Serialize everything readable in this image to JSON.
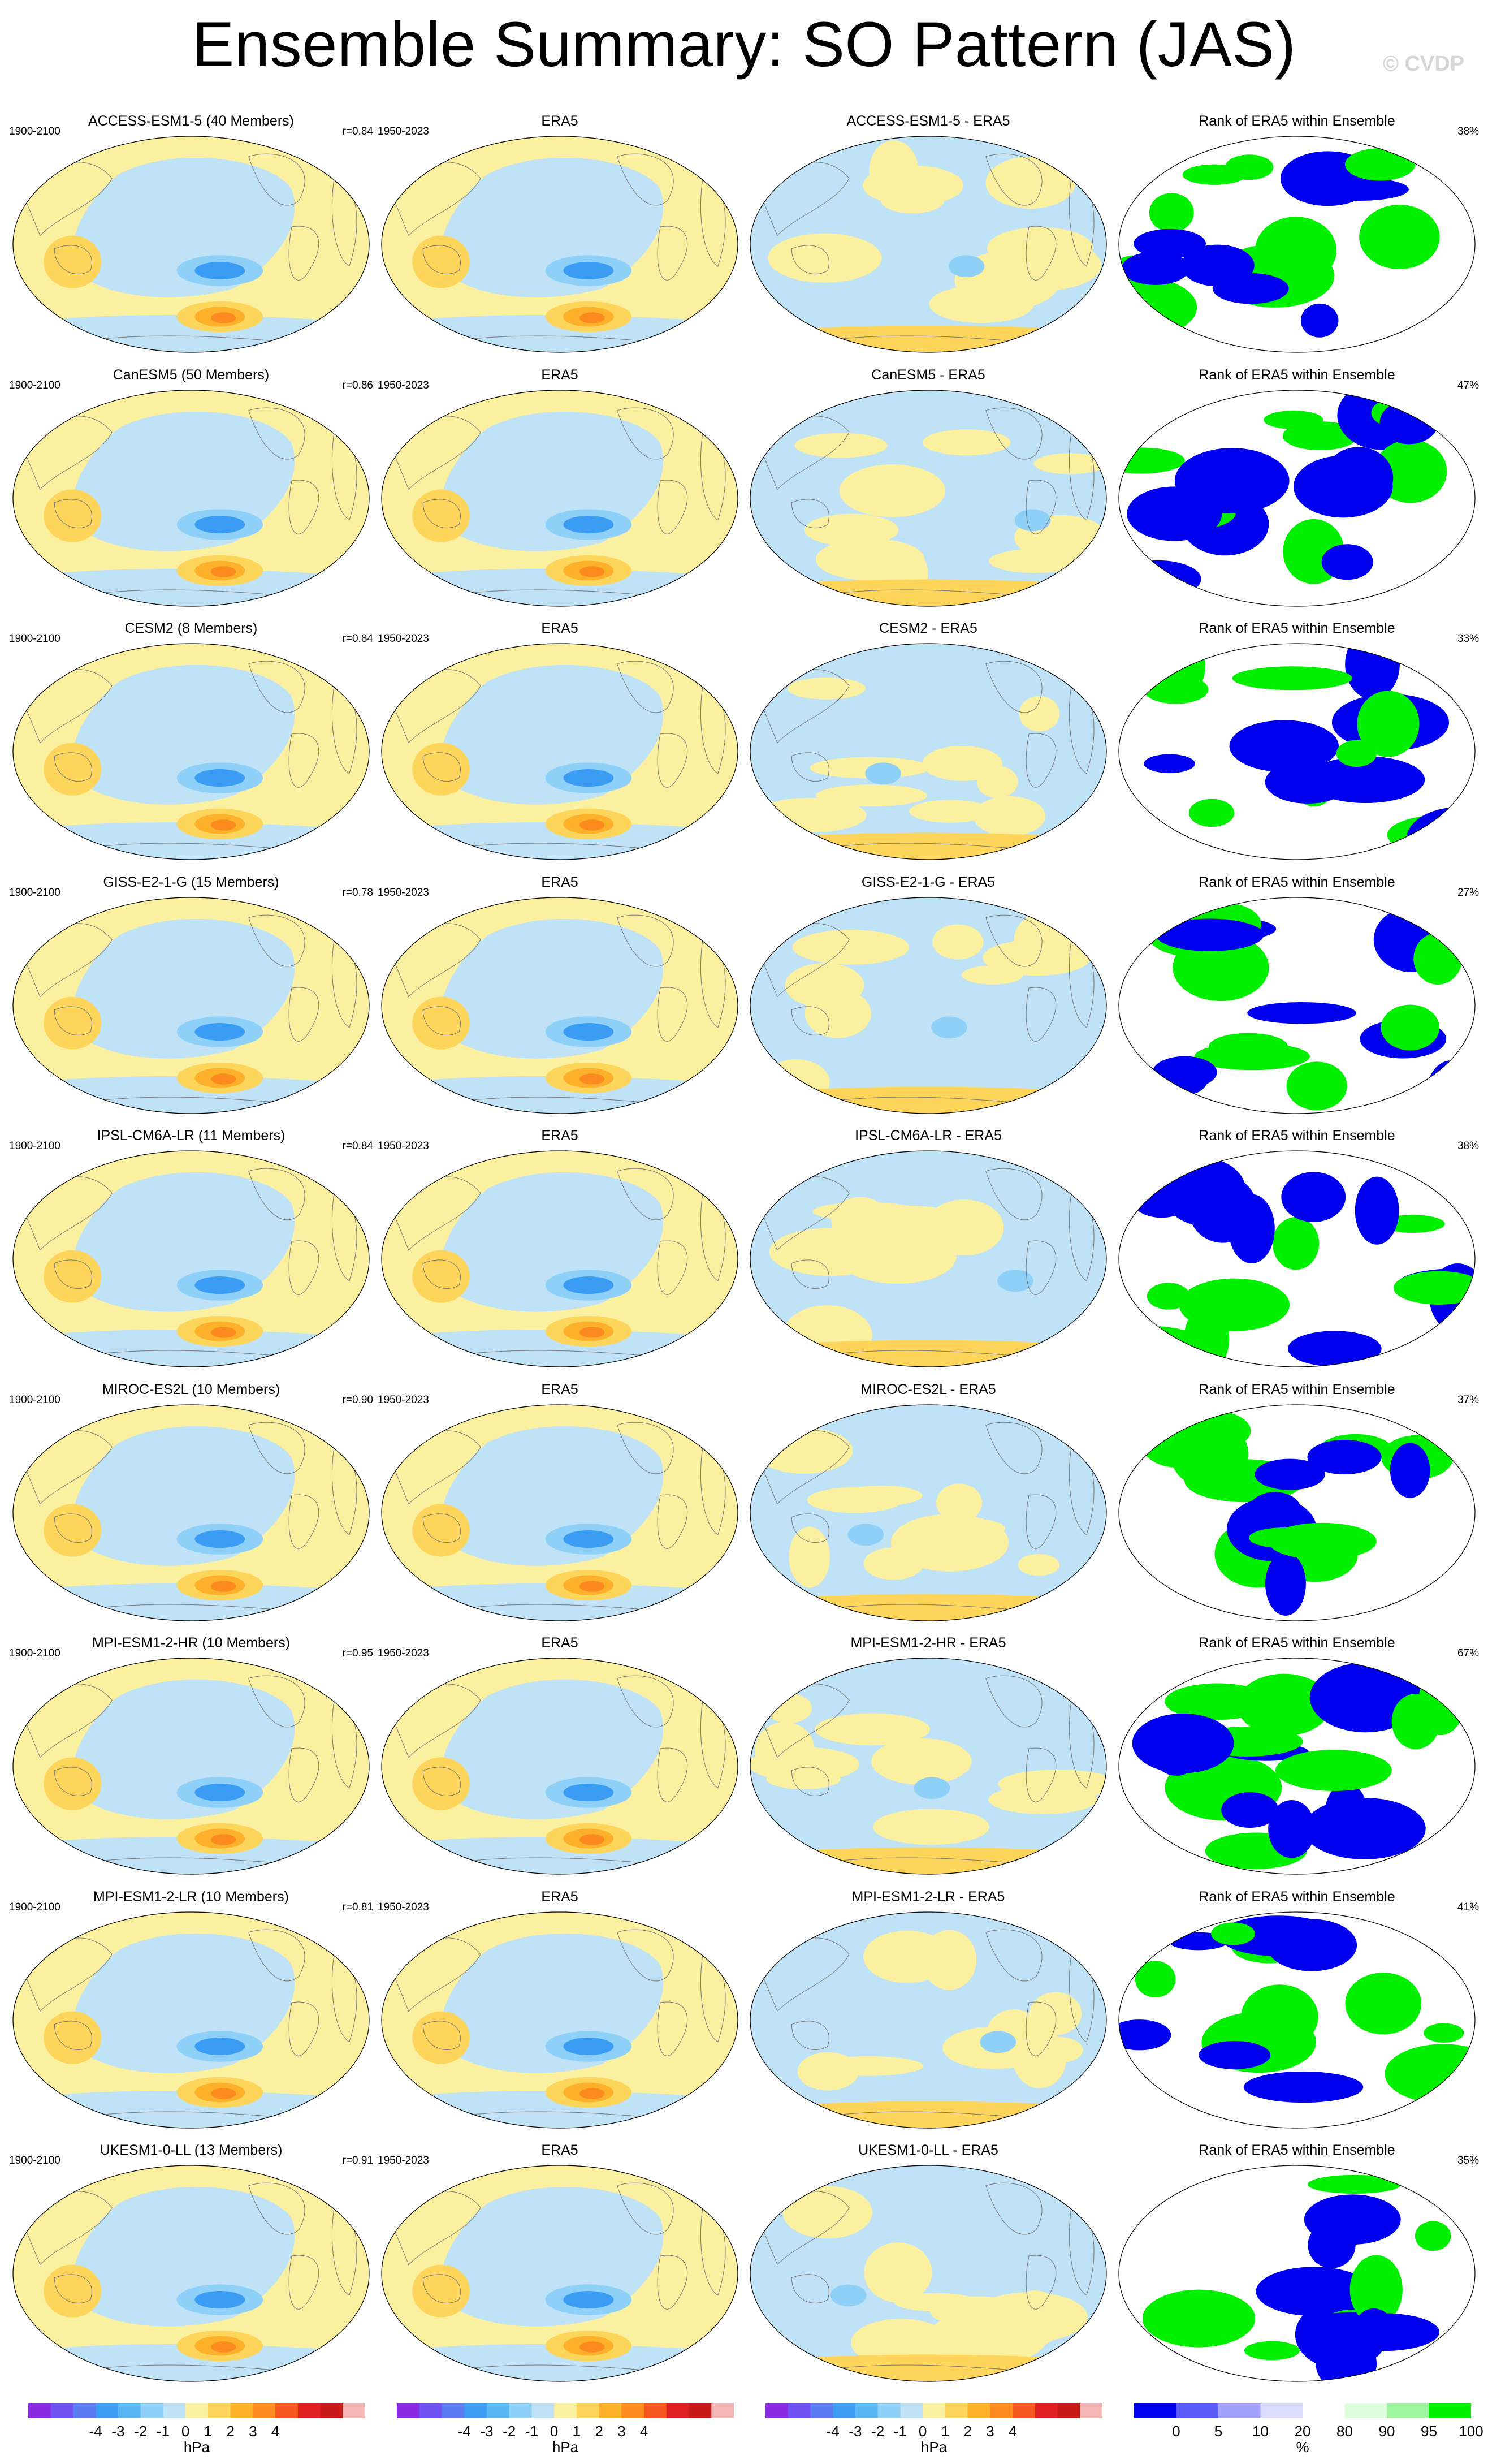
{
  "title": "Ensemble Summary: SO Pattern (JAS)",
  "watermark": "© CVDP",
  "colors": {
    "background": "#ffffff",
    "pos_fill": "#fbf0a0",
    "neg_fill": "#bfe2f6",
    "ocean_lines": "#777777",
    "rank_low": "#0000f0",
    "rank_mid": "#ffffff",
    "rank_high": "#00f000"
  },
  "colorbars": [
    {
      "type": "diverging",
      "ticks": [
        "-4",
        "-3",
        "-2",
        "-1",
        "0",
        "1",
        "2",
        "3",
        "4"
      ],
      "unit": "hPa",
      "colors": [
        "#8a2be2",
        "#6f52f0",
        "#5a7bf2",
        "#3b9cf4",
        "#58b8f6",
        "#8fd0f8",
        "#bfe2f6",
        "#fbf0a0",
        "#fcd55a",
        "#fdb02a",
        "#fc8a1f",
        "#f4581c",
        "#e02020",
        "#c91a1a",
        "#f5b6b6"
      ]
    },
    {
      "type": "diverging",
      "ticks": [
        "-4",
        "-3",
        "-2",
        "-1",
        "0",
        "1",
        "2",
        "3",
        "4"
      ],
      "unit": "hPa",
      "colors": [
        "#8a2be2",
        "#6f52f0",
        "#5a7bf2",
        "#3b9cf4",
        "#58b8f6",
        "#8fd0f8",
        "#bfe2f6",
        "#fbf0a0",
        "#fcd55a",
        "#fdb02a",
        "#fc8a1f",
        "#f4581c",
        "#e02020",
        "#c91a1a",
        "#f5b6b6"
      ]
    },
    {
      "type": "diverging",
      "ticks": [
        "-4",
        "-3",
        "-2",
        "-1",
        "0",
        "1",
        "2",
        "3",
        "4"
      ],
      "unit": "hPa",
      "colors": [
        "#8a2be2",
        "#6f52f0",
        "#5a7bf2",
        "#3b9cf4",
        "#58b8f6",
        "#8fd0f8",
        "#bfe2f6",
        "#fbf0a0",
        "#fcd55a",
        "#fdb02a",
        "#fc8a1f",
        "#f4581c",
        "#e02020",
        "#c91a1a",
        "#f5b6b6"
      ]
    },
    {
      "type": "rank",
      "ticks": [
        "0",
        "5",
        "10",
        "20",
        "80",
        "90",
        "95",
        "100"
      ],
      "unit": "%",
      "colors": [
        "#0000f0",
        "#5a5af6",
        "#a0a0fa",
        "#dcdcfe",
        "#ffffff",
        "#dcfcdc",
        "#a0f8a0",
        "#00f000"
      ]
    }
  ],
  "chart_data": [
    {
      "type": "heatmap",
      "row": 0,
      "col": 0,
      "title": "ACCESS-ESM1-5 (40 Members)",
      "left_label": "1900-2100",
      "right_label": "r=0.84"
    },
    {
      "type": "heatmap",
      "row": 0,
      "col": 1,
      "title": "ERA5",
      "left_label": "1950-2023",
      "right_label": ""
    },
    {
      "type": "heatmap",
      "row": 0,
      "col": 2,
      "title": "ACCESS-ESM1-5 - ERA5",
      "left_label": "",
      "right_label": ""
    },
    {
      "type": "heatmap",
      "row": 0,
      "col": 3,
      "title": "Rank of ERA5 within Ensemble",
      "left_label": "",
      "right_label": "38%"
    },
    {
      "type": "heatmap",
      "row": 1,
      "col": 0,
      "title": "CanESM5 (50 Members)",
      "left_label": "1900-2100",
      "right_label": "r=0.86"
    },
    {
      "type": "heatmap",
      "row": 1,
      "col": 1,
      "title": "ERA5",
      "left_label": "1950-2023",
      "right_label": ""
    },
    {
      "type": "heatmap",
      "row": 1,
      "col": 2,
      "title": "CanESM5 - ERA5",
      "left_label": "",
      "right_label": ""
    },
    {
      "type": "heatmap",
      "row": 1,
      "col": 3,
      "title": "Rank of ERA5 within Ensemble",
      "left_label": "",
      "right_label": "47%"
    },
    {
      "type": "heatmap",
      "row": 2,
      "col": 0,
      "title": "CESM2 (8 Members)",
      "left_label": "1900-2100",
      "right_label": "r=0.84"
    },
    {
      "type": "heatmap",
      "row": 2,
      "col": 1,
      "title": "ERA5",
      "left_label": "1950-2023",
      "right_label": ""
    },
    {
      "type": "heatmap",
      "row": 2,
      "col": 2,
      "title": "CESM2 - ERA5",
      "left_label": "",
      "right_label": ""
    },
    {
      "type": "heatmap",
      "row": 2,
      "col": 3,
      "title": "Rank of ERA5 within Ensemble",
      "left_label": "",
      "right_label": "33%"
    },
    {
      "type": "heatmap",
      "row": 3,
      "col": 0,
      "title": "GISS-E2-1-G (15 Members)",
      "left_label": "1900-2100",
      "right_label": "r=0.78"
    },
    {
      "type": "heatmap",
      "row": 3,
      "col": 1,
      "title": "ERA5",
      "left_label": "1950-2023",
      "right_label": ""
    },
    {
      "type": "heatmap",
      "row": 3,
      "col": 2,
      "title": "GISS-E2-1-G - ERA5",
      "left_label": "",
      "right_label": ""
    },
    {
      "type": "heatmap",
      "row": 3,
      "col": 3,
      "title": "Rank of ERA5 within Ensemble",
      "left_label": "",
      "right_label": "27%"
    },
    {
      "type": "heatmap",
      "row": 4,
      "col": 0,
      "title": "IPSL-CM6A-LR (11 Members)",
      "left_label": "1900-2100",
      "right_label": "r=0.84"
    },
    {
      "type": "heatmap",
      "row": 4,
      "col": 1,
      "title": "ERA5",
      "left_label": "1950-2023",
      "right_label": ""
    },
    {
      "type": "heatmap",
      "row": 4,
      "col": 2,
      "title": "IPSL-CM6A-LR - ERA5",
      "left_label": "",
      "right_label": ""
    },
    {
      "type": "heatmap",
      "row": 4,
      "col": 3,
      "title": "Rank of ERA5 within Ensemble",
      "left_label": "",
      "right_label": "38%"
    },
    {
      "type": "heatmap",
      "row": 5,
      "col": 0,
      "title": "MIROC-ES2L (10 Members)",
      "left_label": "1900-2100",
      "right_label": "r=0.90"
    },
    {
      "type": "heatmap",
      "row": 5,
      "col": 1,
      "title": "ERA5",
      "left_label": "1950-2023",
      "right_label": ""
    },
    {
      "type": "heatmap",
      "row": 5,
      "col": 2,
      "title": "MIROC-ES2L - ERA5",
      "left_label": "",
      "right_label": ""
    },
    {
      "type": "heatmap",
      "row": 5,
      "col": 3,
      "title": "Rank of ERA5 within Ensemble",
      "left_label": "",
      "right_label": "37%"
    },
    {
      "type": "heatmap",
      "row": 6,
      "col": 0,
      "title": "MPI-ESM1-2-HR (10 Members)",
      "left_label": "1900-2100",
      "right_label": "r=0.95"
    },
    {
      "type": "heatmap",
      "row": 6,
      "col": 1,
      "title": "ERA5",
      "left_label": "1950-2023",
      "right_label": ""
    },
    {
      "type": "heatmap",
      "row": 6,
      "col": 2,
      "title": "MPI-ESM1-2-HR - ERA5",
      "left_label": "",
      "right_label": ""
    },
    {
      "type": "heatmap",
      "row": 6,
      "col": 3,
      "title": "Rank of ERA5 within Ensemble",
      "left_label": "",
      "right_label": "67%"
    },
    {
      "type": "heatmap",
      "row": 7,
      "col": 0,
      "title": "MPI-ESM1-2-LR (10 Members)",
      "left_label": "1900-2100",
      "right_label": "r=0.81"
    },
    {
      "type": "heatmap",
      "row": 7,
      "col": 1,
      "title": "ERA5",
      "left_label": "1950-2023",
      "right_label": ""
    },
    {
      "type": "heatmap",
      "row": 7,
      "col": 2,
      "title": "MPI-ESM1-2-LR - ERA5",
      "left_label": "",
      "right_label": ""
    },
    {
      "type": "heatmap",
      "row": 7,
      "col": 3,
      "title": "Rank of ERA5 within Ensemble",
      "left_label": "",
      "right_label": "41%"
    },
    {
      "type": "heatmap",
      "row": 8,
      "col": 0,
      "title": "UKESM1-0-LL (13 Members)",
      "left_label": "1900-2100",
      "right_label": "r=0.91"
    },
    {
      "type": "heatmap",
      "row": 8,
      "col": 1,
      "title": "ERA5",
      "left_label": "1950-2023",
      "right_label": ""
    },
    {
      "type": "heatmap",
      "row": 8,
      "col": 2,
      "title": "UKESM1-0-LL - ERA5",
      "left_label": "",
      "right_label": ""
    },
    {
      "type": "heatmap",
      "row": 8,
      "col": 3,
      "title": "Rank of ERA5 within Ensemble",
      "left_label": "",
      "right_label": "35%"
    }
  ]
}
